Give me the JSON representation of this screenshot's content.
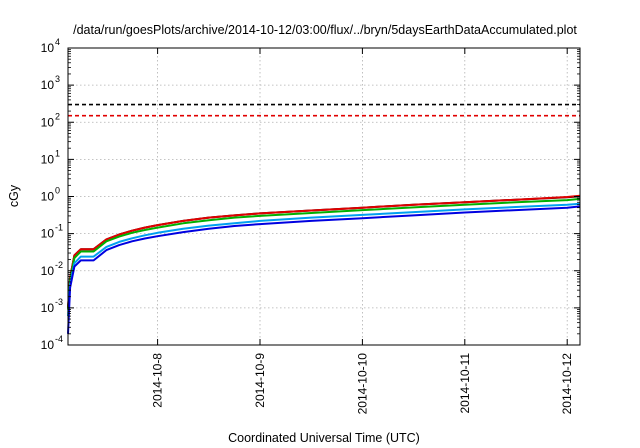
{
  "chart_data": {
    "type": "line",
    "title": "/data/run/goesPlots/archive/2014-10-12/03:00/flux/../bryn/5daysEarthDataAccumulated.plot",
    "xlabel": "Coordinated Universal Time (UTC)",
    "ylabel": "cGy",
    "y_scale": "log",
    "ylim": [
      0.0001,
      10000
    ],
    "xlim": [
      "2014-10-07 03:00",
      "2014-10-12 03:00"
    ],
    "grid": true,
    "legend": "none",
    "y_ticks": [
      {
        "value": 0.0001,
        "base": "10",
        "exp": "-4"
      },
      {
        "value": 0.001,
        "base": "10",
        "exp": "-3"
      },
      {
        "value": 0.01,
        "base": "10",
        "exp": "-2"
      },
      {
        "value": 0.1,
        "base": "10",
        "exp": "-1"
      },
      {
        "value": 1,
        "base": "10",
        "exp": "0"
      },
      {
        "value": 10,
        "base": "10",
        "exp": "1"
      },
      {
        "value": 100,
        "base": "10",
        "exp": "2"
      },
      {
        "value": 1000,
        "base": "10",
        "exp": "3"
      },
      {
        "value": 10000,
        "base": "10",
        "exp": "4"
      }
    ],
    "x_ticks": [
      {
        "x": "2014-10-08 00:00",
        "label": "2014-10-8"
      },
      {
        "x": "2014-10-09 00:00",
        "label": "2014-10-9"
      },
      {
        "x": "2014-10-10 00:00",
        "label": "2014-10-10"
      },
      {
        "x": "2014-10-11 00:00",
        "label": "2014-10-11"
      },
      {
        "x": "2014-10-12 00:00",
        "label": "2014-10-12"
      }
    ],
    "hlines": [
      {
        "y": 300,
        "color": "#000000",
        "style": "dashed"
      },
      {
        "y": 150,
        "color": "#e00000",
        "style": "dashed"
      }
    ],
    "x": [
      "2014-10-07 03:00",
      "2014-10-07 03:30",
      "2014-10-07 04:30",
      "2014-10-07 06:00",
      "2014-10-07 07:30",
      "2014-10-07 09:00",
      "2014-10-07 12:00",
      "2014-10-07 15:00",
      "2014-10-07 18:00",
      "2014-10-07 21:00",
      "2014-10-08 00:00",
      "2014-10-08 06:00",
      "2014-10-08 12:00",
      "2014-10-08 18:00",
      "2014-10-09 00:00",
      "2014-10-09 12:00",
      "2014-10-10 00:00",
      "2014-10-10 12:00",
      "2014-10-11 00:00",
      "2014-10-11 12:00",
      "2014-10-12 00:00",
      "2014-10-12 03:00"
    ],
    "series": [
      {
        "color": "#000000",
        "values": [
          0.001,
          0.0065,
          0.026,
          0.038,
          0.038,
          0.038,
          0.07,
          0.095,
          0.12,
          0.145,
          0.17,
          0.22,
          0.27,
          0.31,
          0.35,
          0.42,
          0.5,
          0.6,
          0.7,
          0.82,
          0.95,
          1.02
        ]
      },
      {
        "color": "#e00000",
        "values": [
          0.001,
          0.0065,
          0.026,
          0.038,
          0.038,
          0.038,
          0.07,
          0.095,
          0.12,
          0.145,
          0.17,
          0.22,
          0.27,
          0.31,
          0.35,
          0.42,
          0.5,
          0.6,
          0.7,
          0.82,
          0.97,
          1.05
        ]
      },
      {
        "color": "#00b000",
        "values": [
          0.0009,
          0.0055,
          0.022,
          0.033,
          0.033,
          0.033,
          0.062,
          0.083,
          0.105,
          0.125,
          0.145,
          0.19,
          0.23,
          0.27,
          0.3,
          0.36,
          0.43,
          0.51,
          0.6,
          0.7,
          0.8,
          0.86
        ]
      },
      {
        "color": "#00a0f0",
        "values": [
          0.0006,
          0.0042,
          0.016,
          0.024,
          0.024,
          0.024,
          0.044,
          0.06,
          0.075,
          0.09,
          0.105,
          0.135,
          0.165,
          0.19,
          0.22,
          0.27,
          0.32,
          0.38,
          0.45,
          0.52,
          0.6,
          0.64
        ]
      },
      {
        "color": "#0000e0",
        "values": [
          0.0002,
          0.0035,
          0.013,
          0.019,
          0.019,
          0.019,
          0.036,
          0.049,
          0.062,
          0.074,
          0.085,
          0.11,
          0.135,
          0.16,
          0.18,
          0.22,
          0.26,
          0.31,
          0.37,
          0.43,
          0.5,
          0.54
        ]
      }
    ]
  }
}
